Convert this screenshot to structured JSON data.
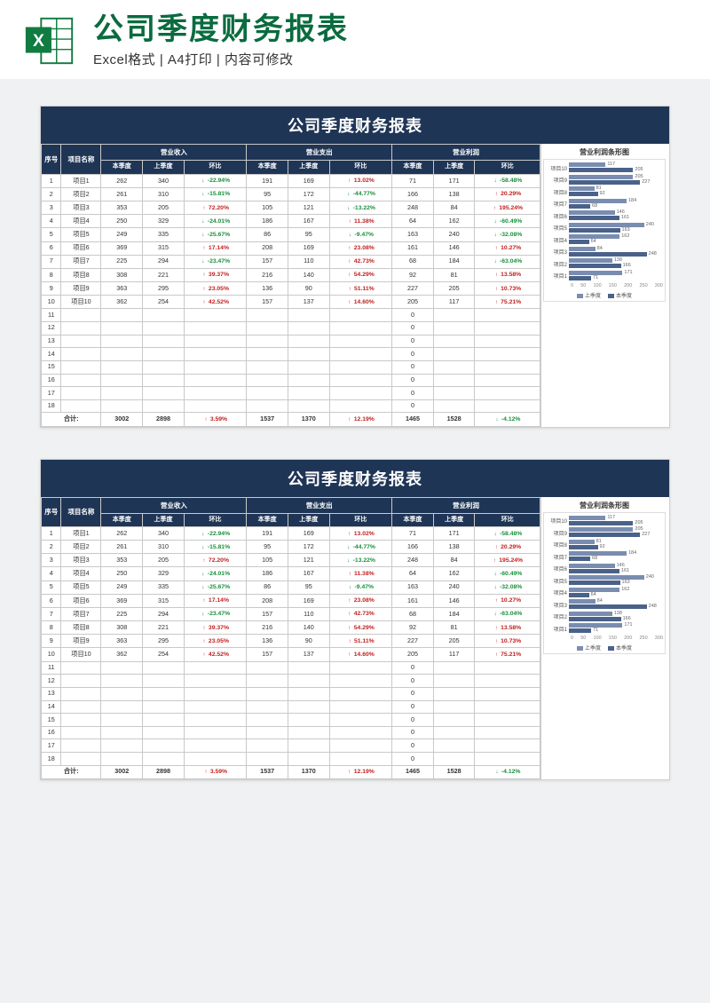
{
  "header": {
    "title": "公司季度财务报表",
    "subtitle": "Excel格式 | A4打印 | 内容可修改"
  },
  "colors": {
    "dark_blue": "#1f3556",
    "excel_green": "#107c41",
    "up": "#c22020",
    "down": "#1a8f3c",
    "bar_prev": "#7a8db0",
    "bar_curr": "#4a6289"
  },
  "report": {
    "title": "公司季度财务报表",
    "groups": [
      "营业收入",
      "营业支出",
      "营业利润"
    ],
    "subcols": [
      "本季度",
      "上季度",
      "环比"
    ],
    "cols": [
      "序号",
      "项目名称"
    ],
    "rows": [
      {
        "n": 1,
        "name": "项目1",
        "rev_c": 262,
        "rev_p": 340,
        "rev_d": -22.94,
        "exp_c": 191,
        "exp_p": 169,
        "exp_d": 13.02,
        "pro_c": 71,
        "pro_p": 171,
        "pro_d": -58.48
      },
      {
        "n": 2,
        "name": "项目2",
        "rev_c": 261,
        "rev_p": 310,
        "rev_d": -15.81,
        "exp_c": 95,
        "exp_p": 172,
        "exp_d": -44.77,
        "pro_c": 166,
        "pro_p": 138,
        "pro_d": 20.29
      },
      {
        "n": 3,
        "name": "项目3",
        "rev_c": 353,
        "rev_p": 205,
        "rev_d": 72.2,
        "exp_c": 105,
        "exp_p": 121,
        "exp_d": -13.22,
        "pro_c": 248,
        "pro_p": 84,
        "pro_d": 195.24
      },
      {
        "n": 4,
        "name": "项目4",
        "rev_c": 250,
        "rev_p": 329,
        "rev_d": -24.01,
        "exp_c": 186,
        "exp_p": 167,
        "exp_d": 11.38,
        "pro_c": 64,
        "pro_p": 162,
        "pro_d": -60.49
      },
      {
        "n": 5,
        "name": "项目5",
        "rev_c": 249,
        "rev_p": 335,
        "rev_d": -25.67,
        "exp_c": 86,
        "exp_p": 95,
        "exp_d": -9.47,
        "pro_c": 163,
        "pro_p": 240,
        "pro_d": -32.08
      },
      {
        "n": 6,
        "name": "项目6",
        "rev_c": 369,
        "rev_p": 315,
        "rev_d": 17.14,
        "exp_c": 208,
        "exp_p": 169,
        "exp_d": 23.08,
        "pro_c": 161,
        "pro_p": 146,
        "pro_d": 10.27
      },
      {
        "n": 7,
        "name": "项目7",
        "rev_c": 225,
        "rev_p": 294,
        "rev_d": -23.47,
        "exp_c": 157,
        "exp_p": 110,
        "exp_d": 42.73,
        "pro_c": 68,
        "pro_p": 184,
        "pro_d": -63.04
      },
      {
        "n": 8,
        "name": "项目8",
        "rev_c": 308,
        "rev_p": 221,
        "rev_d": 39.37,
        "exp_c": 216,
        "exp_p": 140,
        "exp_d": 54.29,
        "pro_c": 92,
        "pro_p": 81,
        "pro_d": 13.58
      },
      {
        "n": 9,
        "name": "项目9",
        "rev_c": 363,
        "rev_p": 295,
        "rev_d": 23.05,
        "exp_c": 136,
        "exp_p": 90,
        "exp_d": 51.11,
        "pro_c": 227,
        "pro_p": 205,
        "pro_d": 10.73
      },
      {
        "n": 10,
        "name": "项目10",
        "rev_c": 362,
        "rev_p": 254,
        "rev_d": 42.52,
        "exp_c": 157,
        "exp_p": 137,
        "exp_d": 14.6,
        "pro_c": 205,
        "pro_p": 117,
        "pro_d": 75.21
      }
    ],
    "empty_rows": [
      11,
      12,
      13,
      14,
      15,
      16,
      17,
      18
    ],
    "totals": {
      "label": "合计:",
      "rev_c": 3002,
      "rev_p": 2898,
      "rev_d": 3.59,
      "exp_c": 1537,
      "exp_p": 1370,
      "exp_d": 12.19,
      "pro_c": 1465,
      "pro_p": 1528,
      "pro_d": -4.12
    }
  },
  "chart": {
    "title": "营业利润条形图",
    "type": "bar",
    "max": 300,
    "ticks": [
      0,
      50,
      100,
      150,
      200,
      250,
      300
    ],
    "legend": [
      "上季度",
      "本季度"
    ],
    "items": [
      {
        "label": "项目10",
        "prev": 117,
        "curr": 205
      },
      {
        "label": "项目9",
        "prev": 205,
        "curr": 227
      },
      {
        "label": "项目8",
        "prev": 81,
        "curr": 92
      },
      {
        "label": "项目7",
        "prev": 184,
        "curr": 68
      },
      {
        "label": "项目6",
        "prev": 146,
        "curr": 161
      },
      {
        "label": "项目5",
        "prev": 240,
        "curr": 163
      },
      {
        "label": "项目4",
        "prev": 162,
        "curr": 64
      },
      {
        "label": "项目3",
        "prev": 84,
        "curr": 248
      },
      {
        "label": "项目2",
        "prev": 138,
        "curr": 166
      },
      {
        "label": "项目1",
        "prev": 171,
        "curr": 71
      }
    ]
  }
}
